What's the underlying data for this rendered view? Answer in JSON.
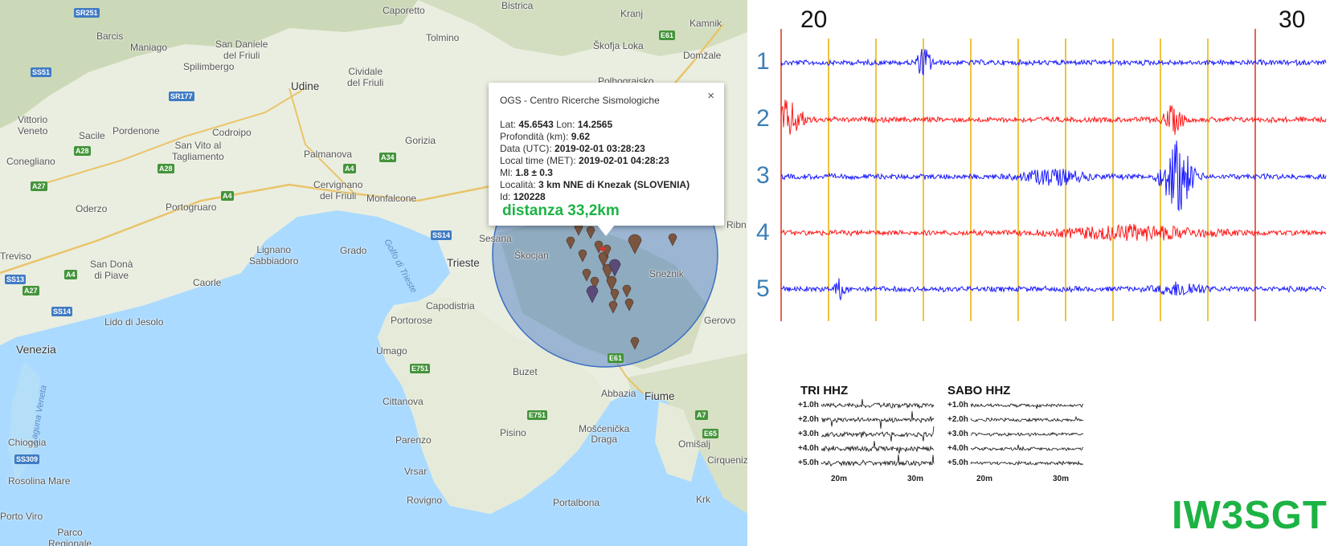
{
  "map": {
    "colors": {
      "land": "#eaeee0",
      "sea": "#aadaff",
      "hills": "#c9d6b4",
      "radius": "#3b6fc2",
      "pin": "#7a5540",
      "pin_purple": "#5b4a78"
    },
    "places": [
      {
        "name": "Caporetto",
        "type": "town"
      },
      {
        "name": "Bistrica",
        "type": "town"
      },
      {
        "name": "Kranj",
        "type": "town"
      },
      {
        "name": "Kamnik",
        "type": "town"
      },
      {
        "name": "Barcis",
        "type": "town"
      },
      {
        "name": "Maniago",
        "type": "town"
      },
      {
        "name": "San Daniele\ndel Friuli",
        "type": "town"
      },
      {
        "name": "Tolmino",
        "type": "town"
      },
      {
        "name": "Škofja Loka",
        "type": "town"
      },
      {
        "name": "Domžale",
        "type": "town"
      },
      {
        "name": "Spilimbergo",
        "type": "town"
      },
      {
        "name": "Udine",
        "type": "city"
      },
      {
        "name": "Cividale\ndel Friuli",
        "type": "town"
      },
      {
        "name": "Polhograjsko",
        "type": "town"
      },
      {
        "name": "Vittorio\nVeneto",
        "type": "town"
      },
      {
        "name": "Sacile",
        "type": "town"
      },
      {
        "name": "Pordenone",
        "type": "town"
      },
      {
        "name": "Codroipo",
        "type": "town"
      },
      {
        "name": "San Vito al\nTagliamento",
        "type": "town"
      },
      {
        "name": "Palmanova",
        "type": "town"
      },
      {
        "name": "Gorizia",
        "type": "town"
      },
      {
        "name": "Conegliano",
        "type": "town"
      },
      {
        "name": "Oderzo",
        "type": "town"
      },
      {
        "name": "Portogruaro",
        "type": "town"
      },
      {
        "name": "Cervignano\ndel Friuli",
        "type": "town"
      },
      {
        "name": "Monfalcone",
        "type": "town"
      },
      {
        "name": "Ribn",
        "type": "town"
      },
      {
        "name": "Treviso",
        "type": "town"
      },
      {
        "name": "San Donà\ndi Piave",
        "type": "town"
      },
      {
        "name": "Lignano\nSabbiadoro",
        "type": "town"
      },
      {
        "name": "Grado",
        "type": "town"
      },
      {
        "name": "Sesana",
        "type": "town"
      },
      {
        "name": "Škocjan",
        "type": "town"
      },
      {
        "name": "Trieste",
        "type": "city"
      },
      {
        "name": "Caorle",
        "type": "town"
      },
      {
        "name": "Snežnik",
        "type": "town"
      },
      {
        "name": "Capodistria",
        "type": "town"
      },
      {
        "name": "Lido di Jesolo",
        "type": "town"
      },
      {
        "name": "Portorose",
        "type": "town"
      },
      {
        "name": "Gerovo",
        "type": "town"
      },
      {
        "name": "Venezia",
        "type": "big"
      },
      {
        "name": "Umago",
        "type": "town"
      },
      {
        "name": "Abbazia",
        "type": "town"
      },
      {
        "name": "Fiume",
        "type": "city"
      },
      {
        "name": "Buzet",
        "type": "town"
      },
      {
        "name": "Cittanova",
        "type": "town"
      },
      {
        "name": "Pisino",
        "type": "town"
      },
      {
        "name": "Mošćenička\nDraga",
        "type": "town"
      },
      {
        "name": "Omišalj",
        "type": "town"
      },
      {
        "name": "Chioggia",
        "type": "town"
      },
      {
        "name": "Parenzo",
        "type": "town"
      },
      {
        "name": "Cirquenizz",
        "type": "town"
      },
      {
        "name": "Vrsar",
        "type": "town"
      },
      {
        "name": "Rosolina Mare",
        "type": "town"
      },
      {
        "name": "Rovigno",
        "type": "town"
      },
      {
        "name": "Portalbona",
        "type": "town"
      },
      {
        "name": "Krk",
        "type": "town"
      },
      {
        "name": "Porto Viro",
        "type": "town"
      },
      {
        "name": "Parco\nRegionale",
        "type": "town"
      },
      {
        "name": "Golfo di Trieste",
        "type": "sea"
      },
      {
        "name": "Laguna Veneta",
        "type": "sea"
      }
    ],
    "roads": [
      {
        "name": "SR251",
        "color": "b"
      },
      {
        "name": "SS51",
        "color": "b"
      },
      {
        "name": "SR177",
        "color": "b"
      },
      {
        "name": "A28",
        "color": "g"
      },
      {
        "name": "A28",
        "color": "g"
      },
      {
        "name": "A34",
        "color": "g"
      },
      {
        "name": "A4",
        "color": "g"
      },
      {
        "name": "A4",
        "color": "g"
      },
      {
        "name": "A27",
        "color": "g"
      },
      {
        "name": "E61",
        "color": "g"
      },
      {
        "name": "SS14",
        "color": "b"
      },
      {
        "name": "SS13",
        "color": "b"
      },
      {
        "name": "A4",
        "color": "g"
      },
      {
        "name": "A27",
        "color": "g"
      },
      {
        "name": "SS14",
        "color": "b"
      },
      {
        "name": "E751",
        "color": "g"
      },
      {
        "name": "E61",
        "color": "g"
      },
      {
        "name": "E751",
        "color": "g"
      },
      {
        "name": "A7",
        "color": "g"
      },
      {
        "name": "E65",
        "color": "g"
      },
      {
        "name": "SS309",
        "color": "b"
      }
    ],
    "popup": {
      "title": "OGS - Centro Ricerche Sismologiche",
      "close": "×",
      "lines": [
        {
          "label": "Lat: ",
          "value": "45.6543",
          "label2": " Lon: ",
          "value2": "14.2565"
        },
        {
          "label": "Profondità (km): ",
          "value": "9.62"
        },
        {
          "label": "Data (UTC): ",
          "value": "2019-02-01 03:28:23"
        },
        {
          "label": "Local time (MET): ",
          "value": "2019-02-01 04:28:23"
        },
        {
          "label": "Ml: ",
          "value": "1.8 ± 0.3"
        },
        {
          "label": "Località: ",
          "value": "3 km NNE di Knezak (SLOVENIA)"
        },
        {
          "label": "Id: ",
          "value": "120228"
        }
      ],
      "distance": "distanza 33,2km"
    }
  },
  "seismogram": {
    "minute_labels": [
      "20",
      "30"
    ],
    "channels": [
      {
        "label": "1",
        "color": "#1a1aff"
      },
      {
        "label": "2",
        "color": "#ff1a1a"
      },
      {
        "label": "3",
        "color": "#1a1aff"
      },
      {
        "label": "4",
        "color": "#ff1a1a"
      },
      {
        "label": "5",
        "color": "#1a1aff"
      }
    ],
    "minute_line_color": "#e8b100",
    "marker_line_color": "#d9331a",
    "helicorders": [
      {
        "name": "TRI HHZ",
        "rows": [
          "+1.0h",
          "+2.0h",
          "+3.0h",
          "+4.0h",
          "+5.0h"
        ],
        "xlabels": [
          "20m",
          "30m"
        ]
      },
      {
        "name": "SABO HHZ",
        "rows": [
          "+1.0h",
          "+2.0h",
          "+3.0h",
          "+4.0h",
          "+5.0h"
        ],
        "xlabels": [
          "20m",
          "30m"
        ]
      }
    ],
    "callsign": "IW3SGT",
    "callsign_color": "#1db344"
  }
}
